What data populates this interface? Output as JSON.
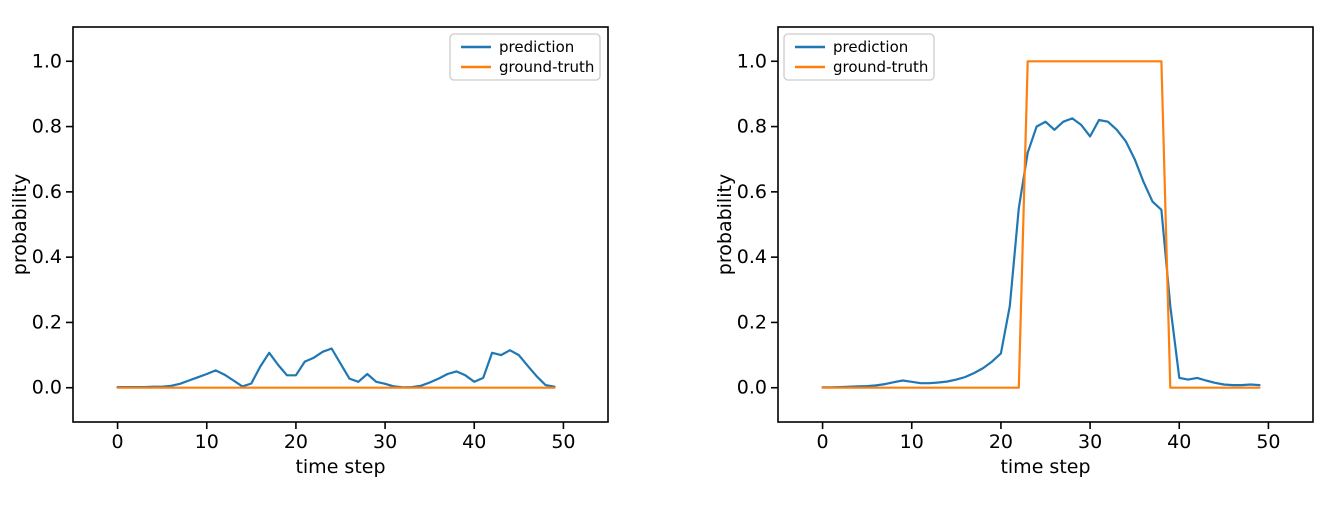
{
  "figure": {
    "background": "#ffffff",
    "axis_color": "#000000",
    "text_color": "#000000",
    "legend_border_color": "#cccccc",
    "legend_background": "#ffffff"
  },
  "chart_data": [
    {
      "type": "line",
      "title": "",
      "xlabel": "time step",
      "ylabel": "probability",
      "xlim": [
        -5,
        55
      ],
      "ylim": [
        -0.105,
        1.105
      ],
      "grid": false,
      "legend_position": "upper-right",
      "xticks": [
        0,
        10,
        20,
        30,
        40,
        50
      ],
      "xtick_labels": [
        "0",
        "10",
        "20",
        "30",
        "40",
        "50"
      ],
      "yticks": [
        0.0,
        0.2,
        0.4,
        0.6,
        0.8,
        1.0
      ],
      "ytick_labels": [
        "0.0",
        "0.2",
        "0.4",
        "0.6",
        "0.8",
        "1.0"
      ],
      "x": [
        0,
        1,
        2,
        3,
        4,
        5,
        6,
        7,
        8,
        9,
        10,
        11,
        12,
        13,
        14,
        15,
        16,
        17,
        18,
        19,
        20,
        21,
        22,
        23,
        24,
        25,
        26,
        27,
        28,
        29,
        30,
        31,
        32,
        33,
        34,
        35,
        36,
        37,
        38,
        39,
        40,
        41,
        42,
        43,
        44,
        45,
        46,
        47,
        48,
        49
      ],
      "series": [
        {
          "name": "prediction",
          "color": "#1f77b4",
          "values": [
            0.002,
            0.002,
            0.002,
            0.002,
            0.003,
            0.003,
            0.006,
            0.012,
            0.022,
            0.032,
            0.042,
            0.053,
            0.04,
            0.022,
            0.004,
            0.013,
            0.065,
            0.107,
            0.07,
            0.038,
            0.038,
            0.08,
            0.092,
            0.11,
            0.12,
            0.074,
            0.028,
            0.018,
            0.042,
            0.018,
            0.012,
            0.004,
            0.001,
            0.002,
            0.006,
            0.016,
            0.028,
            0.042,
            0.05,
            0.038,
            0.018,
            0.03,
            0.107,
            0.1,
            0.115,
            0.1,
            0.067,
            0.035,
            0.008,
            0.003
          ]
        },
        {
          "name": "ground-truth",
          "color": "#ff7f0e",
          "values": [
            0,
            0,
            0,
            0,
            0,
            0,
            0,
            0,
            0,
            0,
            0,
            0,
            0,
            0,
            0,
            0,
            0,
            0,
            0,
            0,
            0,
            0,
            0,
            0,
            0,
            0,
            0,
            0,
            0,
            0,
            0,
            0,
            0,
            0,
            0,
            0,
            0,
            0,
            0,
            0,
            0,
            0,
            0,
            0,
            0,
            0,
            0,
            0,
            0,
            0
          ]
        }
      ]
    },
    {
      "type": "line",
      "title": "",
      "xlabel": "time step",
      "ylabel": "probability",
      "xlim": [
        -5,
        55
      ],
      "ylim": [
        -0.105,
        1.105
      ],
      "grid": false,
      "legend_position": "upper-left",
      "xticks": [
        0,
        10,
        20,
        30,
        40,
        50
      ],
      "xtick_labels": [
        "0",
        "10",
        "20",
        "30",
        "40",
        "50"
      ],
      "yticks": [
        0.0,
        0.2,
        0.4,
        0.6,
        0.8,
        1.0
      ],
      "ytick_labels": [
        "0.0",
        "0.2",
        "0.4",
        "0.6",
        "0.8",
        "1.0"
      ],
      "x": [
        0,
        1,
        2,
        3,
        4,
        5,
        6,
        7,
        8,
        9,
        10,
        11,
        12,
        13,
        14,
        15,
        16,
        17,
        18,
        19,
        20,
        21,
        22,
        23,
        24,
        25,
        26,
        27,
        28,
        29,
        30,
        31,
        32,
        33,
        34,
        35,
        36,
        37,
        38,
        39,
        40,
        41,
        42,
        43,
        44,
        45,
        46,
        47,
        48,
        49
      ],
      "series": [
        {
          "name": "prediction",
          "color": "#1f77b4",
          "values": [
            0.001,
            0.001,
            0.002,
            0.003,
            0.004,
            0.005,
            0.007,
            0.011,
            0.017,
            0.022,
            0.018,
            0.014,
            0.014,
            0.016,
            0.019,
            0.025,
            0.033,
            0.045,
            0.06,
            0.08,
            0.105,
            0.25,
            0.55,
            0.72,
            0.8,
            0.815,
            0.79,
            0.815,
            0.825,
            0.805,
            0.77,
            0.82,
            0.815,
            0.79,
            0.755,
            0.7,
            0.63,
            0.57,
            0.545,
            0.25,
            0.03,
            0.025,
            0.03,
            0.022,
            0.015,
            0.01,
            0.008,
            0.008,
            0.01,
            0.008
          ]
        },
        {
          "name": "ground-truth",
          "color": "#ff7f0e",
          "values": [
            0,
            0,
            0,
            0,
            0,
            0,
            0,
            0,
            0,
            0,
            0,
            0,
            0,
            0,
            0,
            0,
            0,
            0,
            0,
            0,
            0,
            0,
            0,
            1,
            1,
            1,
            1,
            1,
            1,
            1,
            1,
            1,
            1,
            1,
            1,
            1,
            1,
            1,
            1,
            0,
            0,
            0,
            0,
            0,
            0,
            0,
            0,
            0,
            0,
            0
          ]
        }
      ]
    }
  ]
}
